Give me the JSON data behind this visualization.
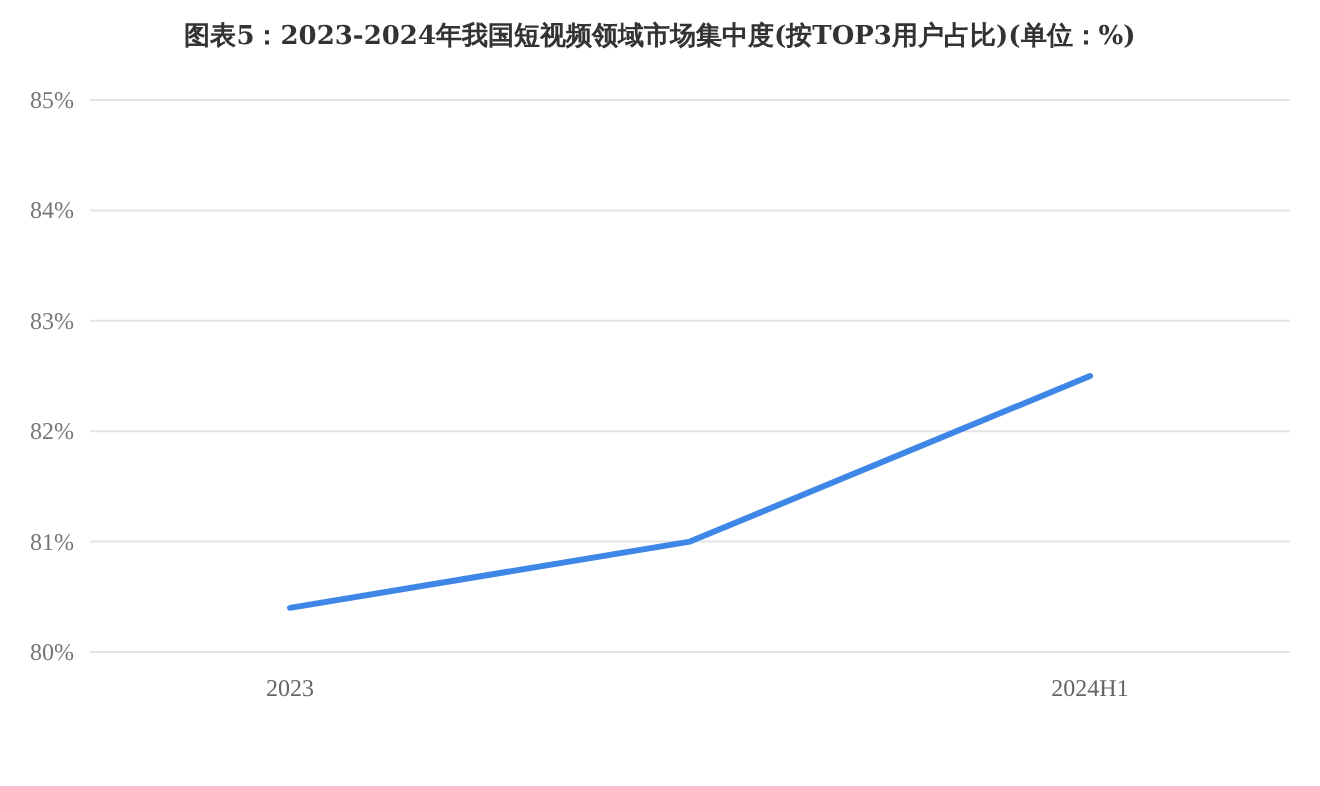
{
  "chart_data": {
    "type": "line",
    "title": "图表5：2023-2024年我国短视频领域市场集中度(按TOP3用户占比)(单位：%)",
    "categories": [
      "2023",
      null,
      "2024H1"
    ],
    "series": [
      {
        "color": "#3f87e6",
        "values": [
          80.4,
          81.0,
          82.5
        ]
      }
    ],
    "ylim": [
      80,
      85
    ],
    "yticks": [
      {
        "value": 80,
        "label": "80%"
      },
      {
        "value": 81,
        "label": "81%"
      },
      {
        "value": 82,
        "label": "82%"
      },
      {
        "value": 83,
        "label": "83%"
      },
      {
        "value": 84,
        "label": "84%"
      },
      {
        "value": 85,
        "label": "85%"
      }
    ],
    "grid": "y",
    "marker": "none",
    "line_style": "solid"
  }
}
